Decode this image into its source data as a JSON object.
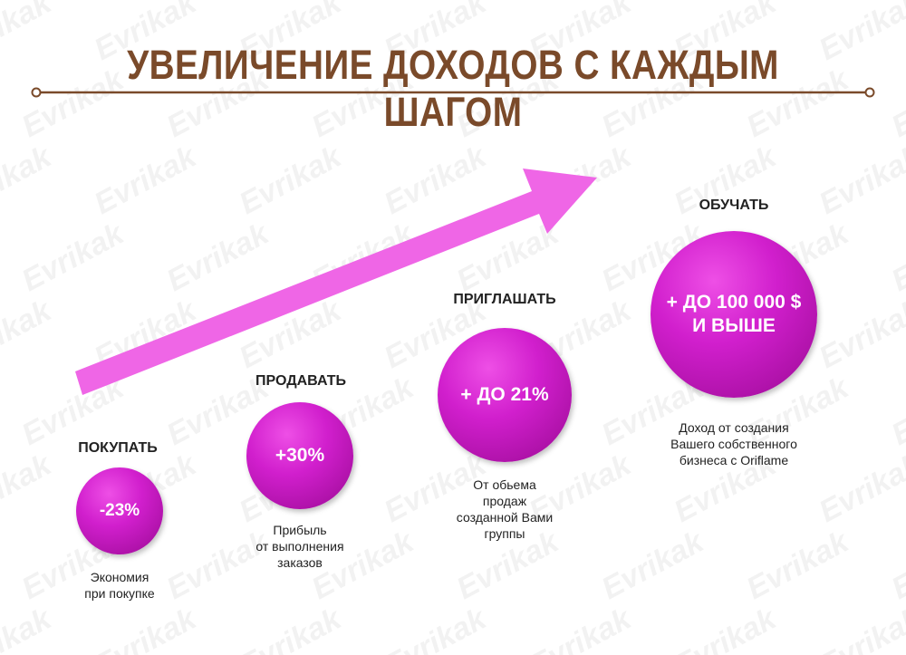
{
  "title": "УВЕЛИЧЕНИЕ ДОХОДОВ С КАЖДЫМ ШАГОМ",
  "watermark_text": "Evrikak",
  "colors": {
    "title": "#7a4a2a",
    "arrow": "#ef66e6",
    "circle": "#d11fcd"
  },
  "steps": [
    {
      "label": "ПОКУПАТЬ",
      "value": "-23%",
      "description": [
        "Экономия",
        "при покупке"
      ]
    },
    {
      "label": "ПРОДАВАТЬ",
      "value": "+30%",
      "description": [
        "Прибыль",
        "от выполнения",
        "заказов"
      ]
    },
    {
      "label": "ПРИГЛАШАТЬ",
      "value": "+ ДО 21%",
      "description": [
        "От обьема",
        "продаж",
        "созданной Вами",
        "группы"
      ]
    },
    {
      "label": "ОБУЧАТЬ",
      "value_lines": [
        "+ ДО 100 000 $",
        "И ВЫШЕ"
      ],
      "description": [
        "Доход от создания",
        "Вашего собственного",
        "бизнеса с Oriflame"
      ]
    }
  ]
}
